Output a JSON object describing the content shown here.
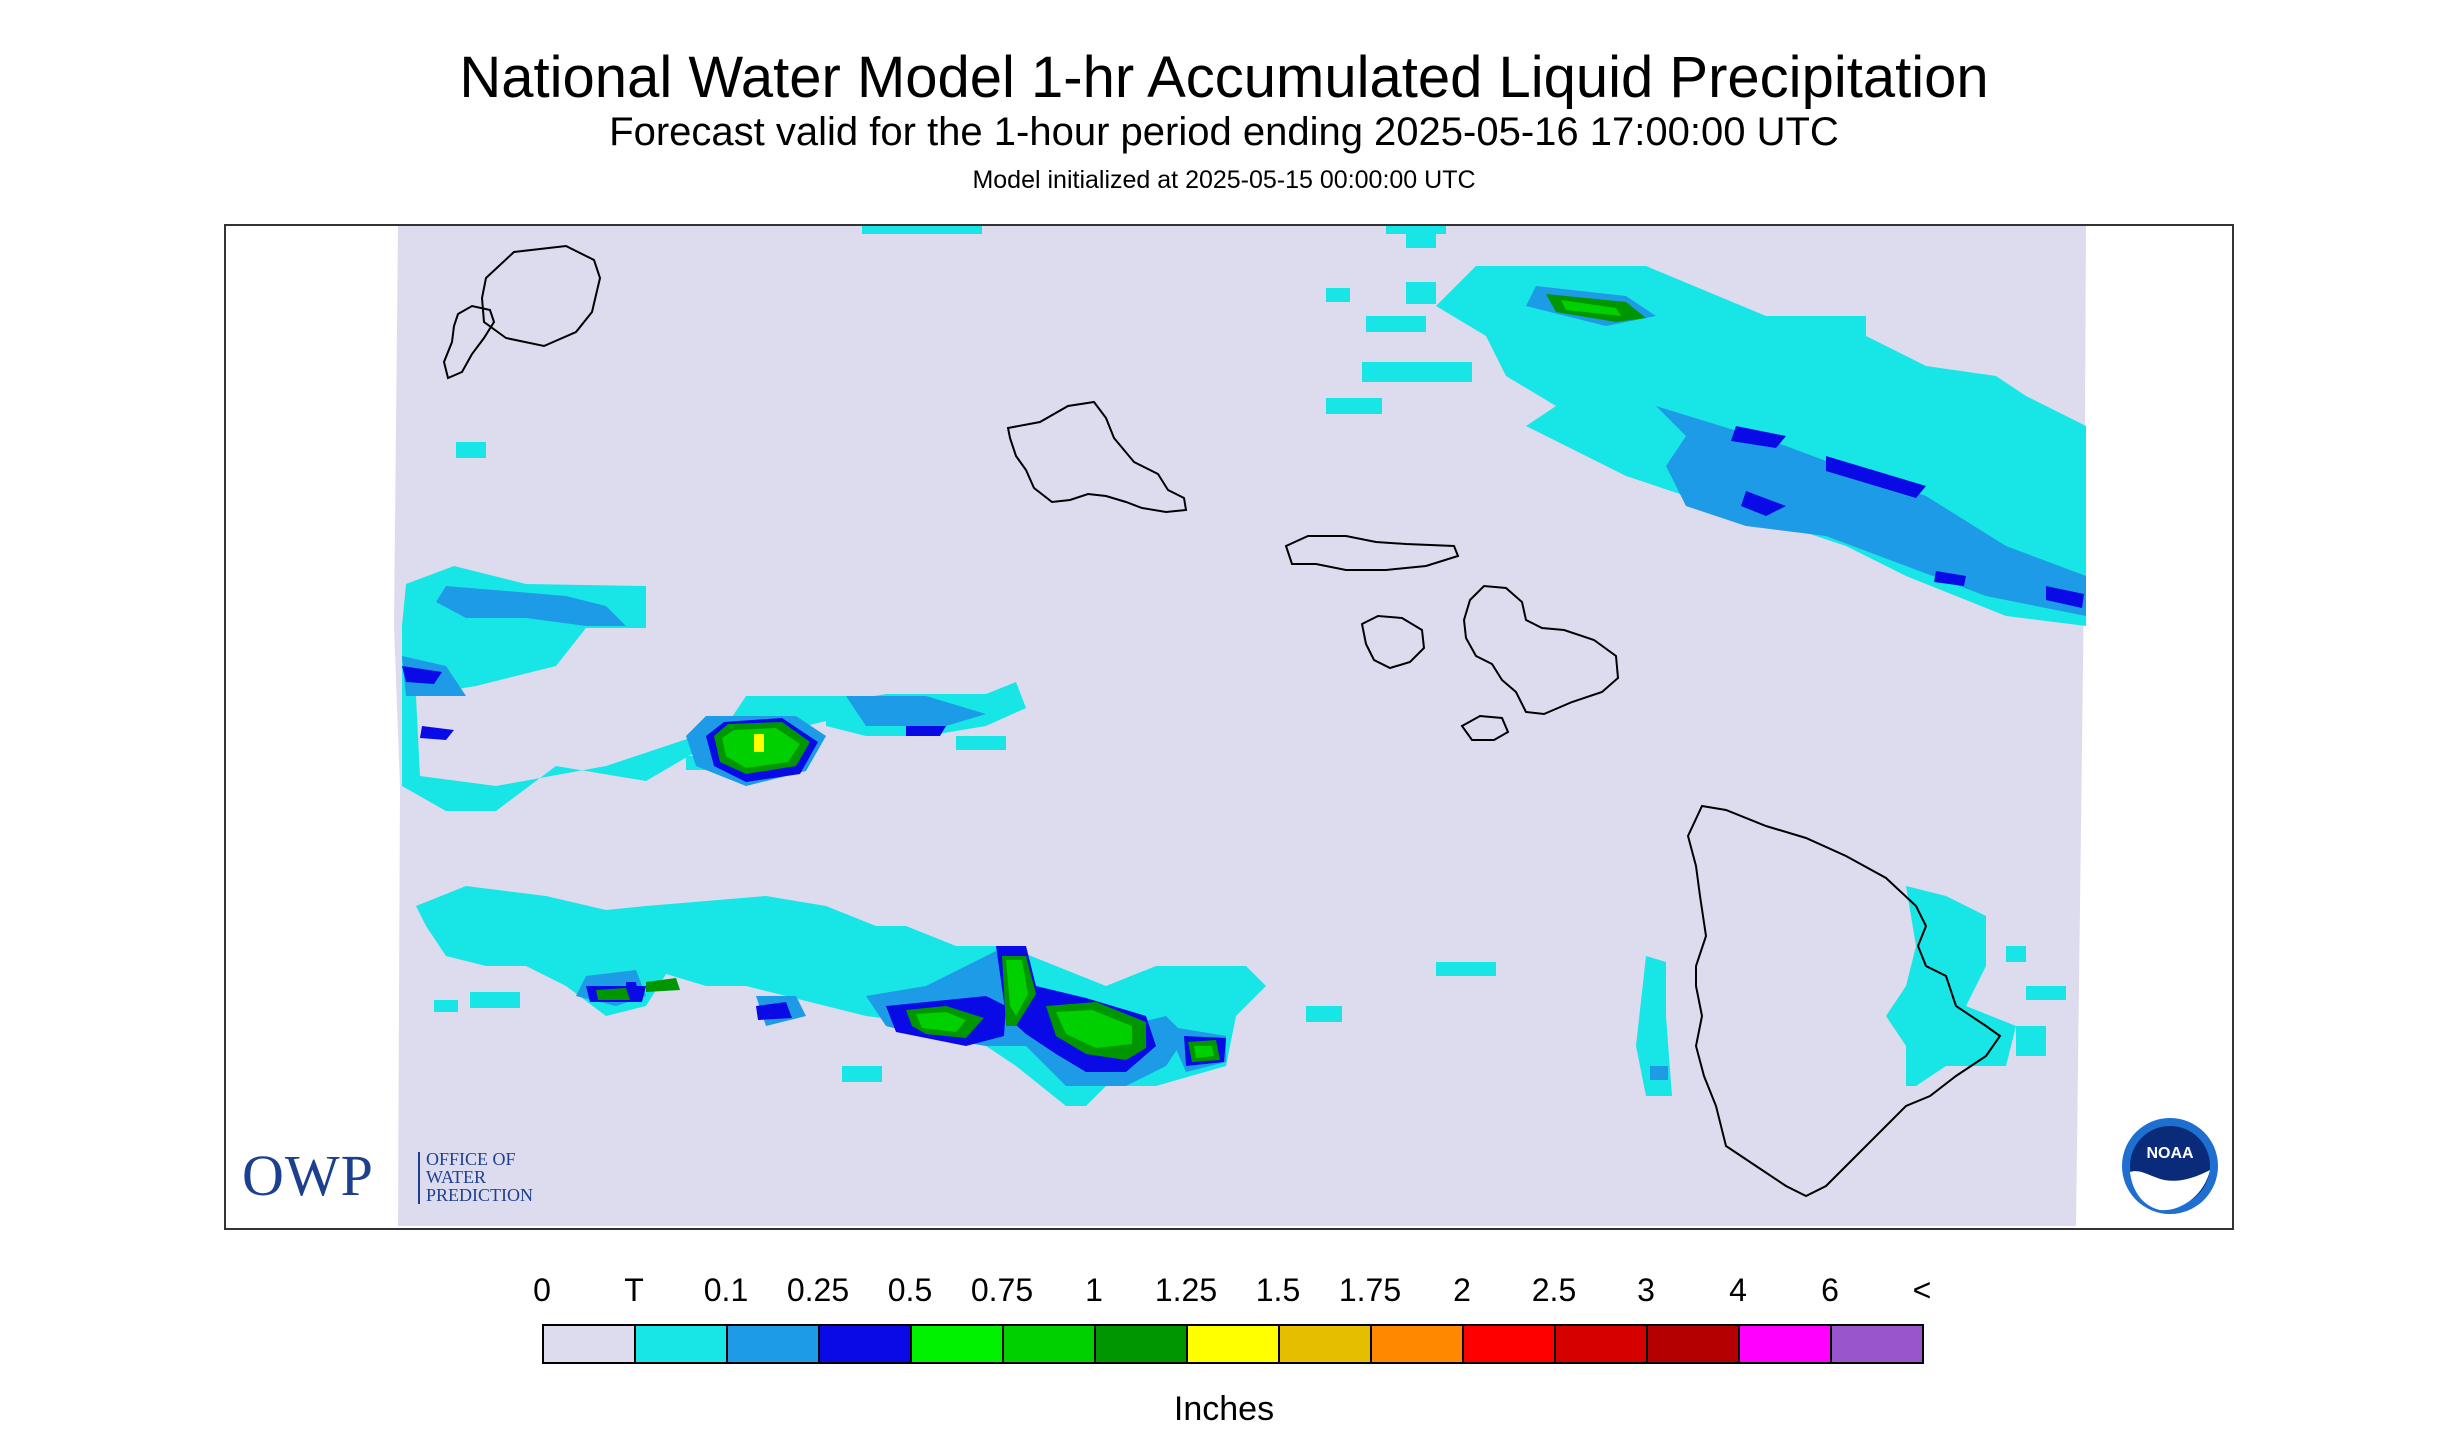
{
  "title": "National Water Model 1-hr Accumulated Liquid Precipitation",
  "subtitle": "Forecast valid for the 1-hour period ending 2025-05-16 17:00:00 UTC",
  "init": "Model initialized at 2025-05-15 00:00:00 UTC",
  "owp_logo": {
    "big": "OWP",
    "small": [
      "OFFICE OF",
      "WATER",
      "PREDICTION"
    ]
  },
  "noaa_logo": "NOAA",
  "legend": {
    "labels": [
      "0",
      "T",
      "0.1",
      "0.25",
      "0.5",
      "0.75",
      "1",
      "1.25",
      "1.5",
      "1.75",
      "2",
      "2.5",
      "3",
      "4",
      "6",
      "<"
    ],
    "colors": [
      "#dcdcee",
      "#18e6e6",
      "#1e9be6",
      "#0a0ae6",
      "#00f200",
      "#00d000",
      "#009600",
      "#ffff00",
      "#e6be00",
      "#ff8800",
      "#ff0000",
      "#d60000",
      "#b40000",
      "#ff00ff",
      "#9955cc"
    ],
    "units": "Inches"
  },
  "colors": {
    "background": "#dcdcee",
    "coast": "#000000"
  }
}
